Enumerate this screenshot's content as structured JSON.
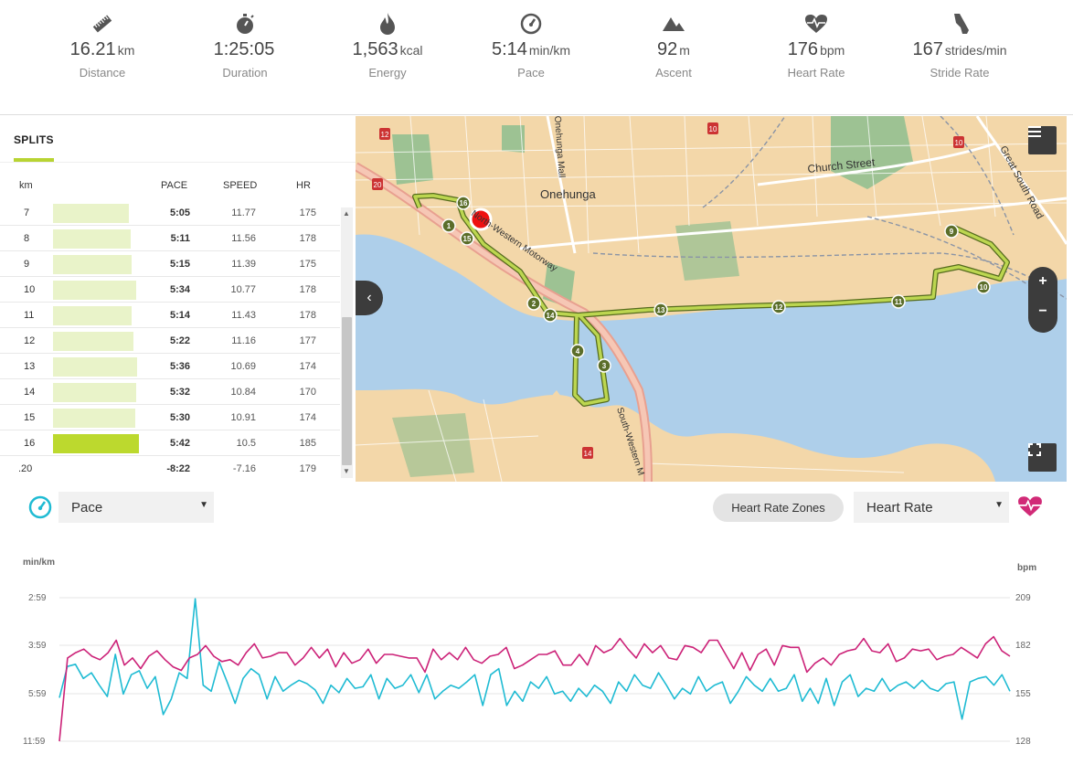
{
  "stats": [
    {
      "icon": "ruler-icon",
      "value": "16.21",
      "unit": "km",
      "label": "Distance"
    },
    {
      "icon": "stopwatch-icon",
      "value": "1:25:05",
      "unit": "",
      "label": "Duration"
    },
    {
      "icon": "flame-icon",
      "value": "1,563",
      "unit": "kcal",
      "label": "Energy"
    },
    {
      "icon": "speedometer-icon",
      "value": "5:14",
      "unit": "min/km",
      "label": "Pace"
    },
    {
      "icon": "mountain-icon",
      "value": "92",
      "unit": "m",
      "label": "Ascent"
    },
    {
      "icon": "heart-pulse-icon",
      "value": "176",
      "unit": "bpm",
      "label": "Heart Rate"
    },
    {
      "icon": "running-shoe-icon",
      "value": "167",
      "unit": "strides/min",
      "label": "Stride Rate"
    }
  ],
  "splits": {
    "tab_label": "SPLITS",
    "headers": {
      "km": "km",
      "pace": "PACE",
      "speed": "SPEED",
      "hr": "HR"
    },
    "rows": [
      {
        "km": "7",
        "pace": "5:05",
        "speed": "11.77",
        "hr": "175",
        "highlight": false
      },
      {
        "km": "8",
        "pace": "5:11",
        "speed": "11.56",
        "hr": "178",
        "highlight": false
      },
      {
        "km": "9",
        "pace": "5:15",
        "speed": "11.39",
        "hr": "175",
        "highlight": false
      },
      {
        "km": "10",
        "pace": "5:34",
        "speed": "10.77",
        "hr": "178",
        "highlight": false
      },
      {
        "km": "11",
        "pace": "5:14",
        "speed": "11.43",
        "hr": "178",
        "highlight": false
      },
      {
        "km": "12",
        "pace": "5:22",
        "speed": "11.16",
        "hr": "177",
        "highlight": false
      },
      {
        "km": "13",
        "pace": "5:36",
        "speed": "10.69",
        "hr": "174",
        "highlight": false
      },
      {
        "km": "14",
        "pace": "5:32",
        "speed": "10.84",
        "hr": "170",
        "highlight": false
      },
      {
        "km": "15",
        "pace": "5:30",
        "speed": "10.91",
        "hr": "174",
        "highlight": false
      },
      {
        "km": "16",
        "pace": "5:42",
        "speed": "10.5",
        "hr": "185",
        "highlight": true
      },
      {
        "km": ".20",
        "pace": "-8:22",
        "speed": "-7.16",
        "hr": "179",
        "highlight": false
      }
    ]
  },
  "map": {
    "labels": {
      "suburb": "Onehunga",
      "street_church": "Church Street",
      "street_gsr": "Great South Road",
      "street_mall": "Onehunga Mall",
      "motorway_nw": "North-Western Motorway",
      "motorway_sw": "South-Western M"
    },
    "route_markers": [
      "1",
      "2",
      "3",
      "4",
      "9",
      "10",
      "11",
      "12",
      "13",
      "14",
      "15",
      "16"
    ],
    "road_shields": [
      "12",
      "20",
      "10",
      "10",
      "14"
    ],
    "colors": {
      "land": "#f3d7a9",
      "water": "#aecfea",
      "park": "#9dc293",
      "route": "#a9c43a"
    }
  },
  "chart_controls": {
    "left_select": "Pace",
    "zones_button": "Heart Rate Zones",
    "right_select": "Heart Rate"
  },
  "chart_data": {
    "type": "line",
    "left_axis": {
      "label": "min/km",
      "ticks": [
        "2:59",
        "3:59",
        "5:59",
        "11:59"
      ]
    },
    "right_axis": {
      "label": "bpm",
      "ticks": [
        "209",
        "182",
        "155",
        "128"
      ],
      "ylim": [
        128,
        209
      ]
    },
    "series": [
      {
        "name": "Heart Rate",
        "color": "#cc2278",
        "values": [
          128,
          175,
          178,
          180,
          176,
          174,
          178,
          185,
          171,
          175,
          169,
          176,
          179,
          174,
          170,
          168,
          175,
          177,
          182,
          176,
          173,
          174,
          171,
          178,
          183,
          175,
          176,
          178,
          178,
          171,
          175,
          181,
          175,
          180,
          170,
          178,
          172,
          174,
          180,
          172,
          177,
          177,
          176,
          175,
          175,
          167,
          180,
          174,
          178,
          174,
          181,
          174,
          172,
          176,
          177,
          181,
          169,
          171,
          174,
          177,
          177,
          179,
          171,
          171,
          177,
          171,
          182,
          178,
          180,
          186,
          180,
          175,
          183,
          178,
          182,
          175,
          174,
          182,
          181,
          178,
          185,
          185,
          177,
          169,
          178,
          168,
          177,
          180,
          171,
          182,
          181,
          181,
          167,
          172,
          175,
          171,
          177,
          179,
          180,
          186,
          179,
          178,
          183,
          173,
          175,
          180,
          179,
          180,
          174,
          176,
          177,
          181,
          178,
          175,
          183,
          187,
          179,
          176
        ],
        "points_approx": true
      },
      {
        "name": "Pace",
        "color": "#1fbbd3",
        "values_min_per_km": [
          "6:15",
          "4:40",
          "4:35",
          "5:10",
          "4:55",
          "5:30",
          "6:10",
          "4:15",
          "6:00",
          "5:00",
          "4:50",
          "5:40",
          "5:05",
          "7:40",
          "6:20",
          "4:55",
          "5:10",
          "3:00",
          "5:30",
          "5:50",
          "4:30",
          "5:20",
          "6:40",
          "5:10",
          "4:45",
          "5:00",
          "6:20",
          "5:05",
          "5:50",
          "5:30",
          "5:15",
          "5:25",
          "5:45",
          "6:40",
          "5:30",
          "5:55",
          "5:10",
          "5:40",
          "5:35",
          "5:00",
          "6:20",
          "5:10",
          "5:40",
          "5:30",
          "5:00",
          "5:55",
          "5:00",
          "6:20",
          "5:50",
          "5:30",
          "5:40",
          "5:20",
          "5:00",
          "6:50",
          "5:00",
          "4:45",
          "6:50",
          "5:50",
          "6:30",
          "5:20",
          "5:40",
          "5:05",
          "6:00",
          "5:50",
          "6:30",
          "5:40",
          "6:10",
          "5:30",
          "5:50",
          "6:40",
          "5:20",
          "5:50",
          "5:00",
          "5:30",
          "5:40",
          "4:55",
          "5:30",
          "6:20",
          "5:40",
          "6:00",
          "5:05",
          "5:50",
          "5:30",
          "5:20",
          "6:40",
          "5:50",
          "5:05",
          "5:30",
          "5:50",
          "5:10",
          "5:50",
          "5:40",
          "5:00",
          "6:30",
          "5:40",
          "6:40",
          "5:10",
          "6:50",
          "5:20",
          "5:00",
          "6:10",
          "5:40",
          "5:50",
          "5:10",
          "5:50",
          "5:30",
          "5:20",
          "5:40",
          "5:15",
          "5:40",
          "5:50",
          "5:25",
          "5:20",
          "8:10",
          "5:20",
          "5:10",
          "5:05",
          "5:30",
          "5:00",
          "5:50"
        ],
        "points_approx": true
      }
    ]
  }
}
